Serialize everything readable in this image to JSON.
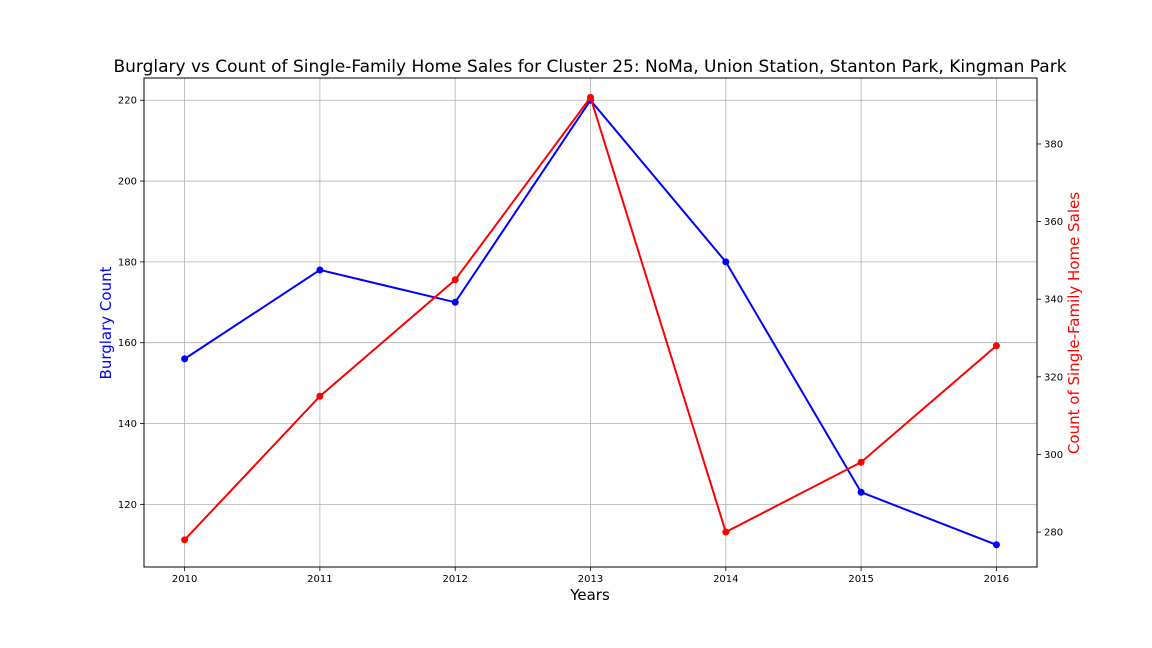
{
  "chart_data": {
    "type": "line",
    "title": "Burglary vs Count of Single-Family Home Sales for Cluster 25: NoMa, Union Station, Stanton Park, Kingman Park",
    "xlabel": "Years",
    "ylabel_left": "Burglary Count",
    "ylabel_right": "Count of Single-Family Home Sales",
    "x": [
      2010,
      2011,
      2012,
      2013,
      2014,
      2015,
      2016
    ],
    "xlim": [
      2009.7,
      2016.3
    ],
    "grid": true,
    "series": [
      {
        "name": "Burglary Count",
        "axis": "left",
        "color": "#0000ff",
        "values": [
          156,
          178,
          170,
          220,
          180,
          123,
          110
        ],
        "ylim": [
          104.5,
          225.5
        ],
        "yticks": [
          120,
          140,
          160,
          180,
          200,
          220
        ]
      },
      {
        "name": "Count of Single-Family Home Sales",
        "axis": "right",
        "color": "#ff0000",
        "values": [
          278,
          315,
          345,
          392,
          280,
          298,
          328
        ],
        "ylim": [
          271,
          397
        ],
        "yticks": [
          280,
          300,
          320,
          340,
          360,
          380
        ]
      }
    ],
    "label_colors": {
      "left": "#0000ff",
      "right": "#ff0000"
    }
  }
}
